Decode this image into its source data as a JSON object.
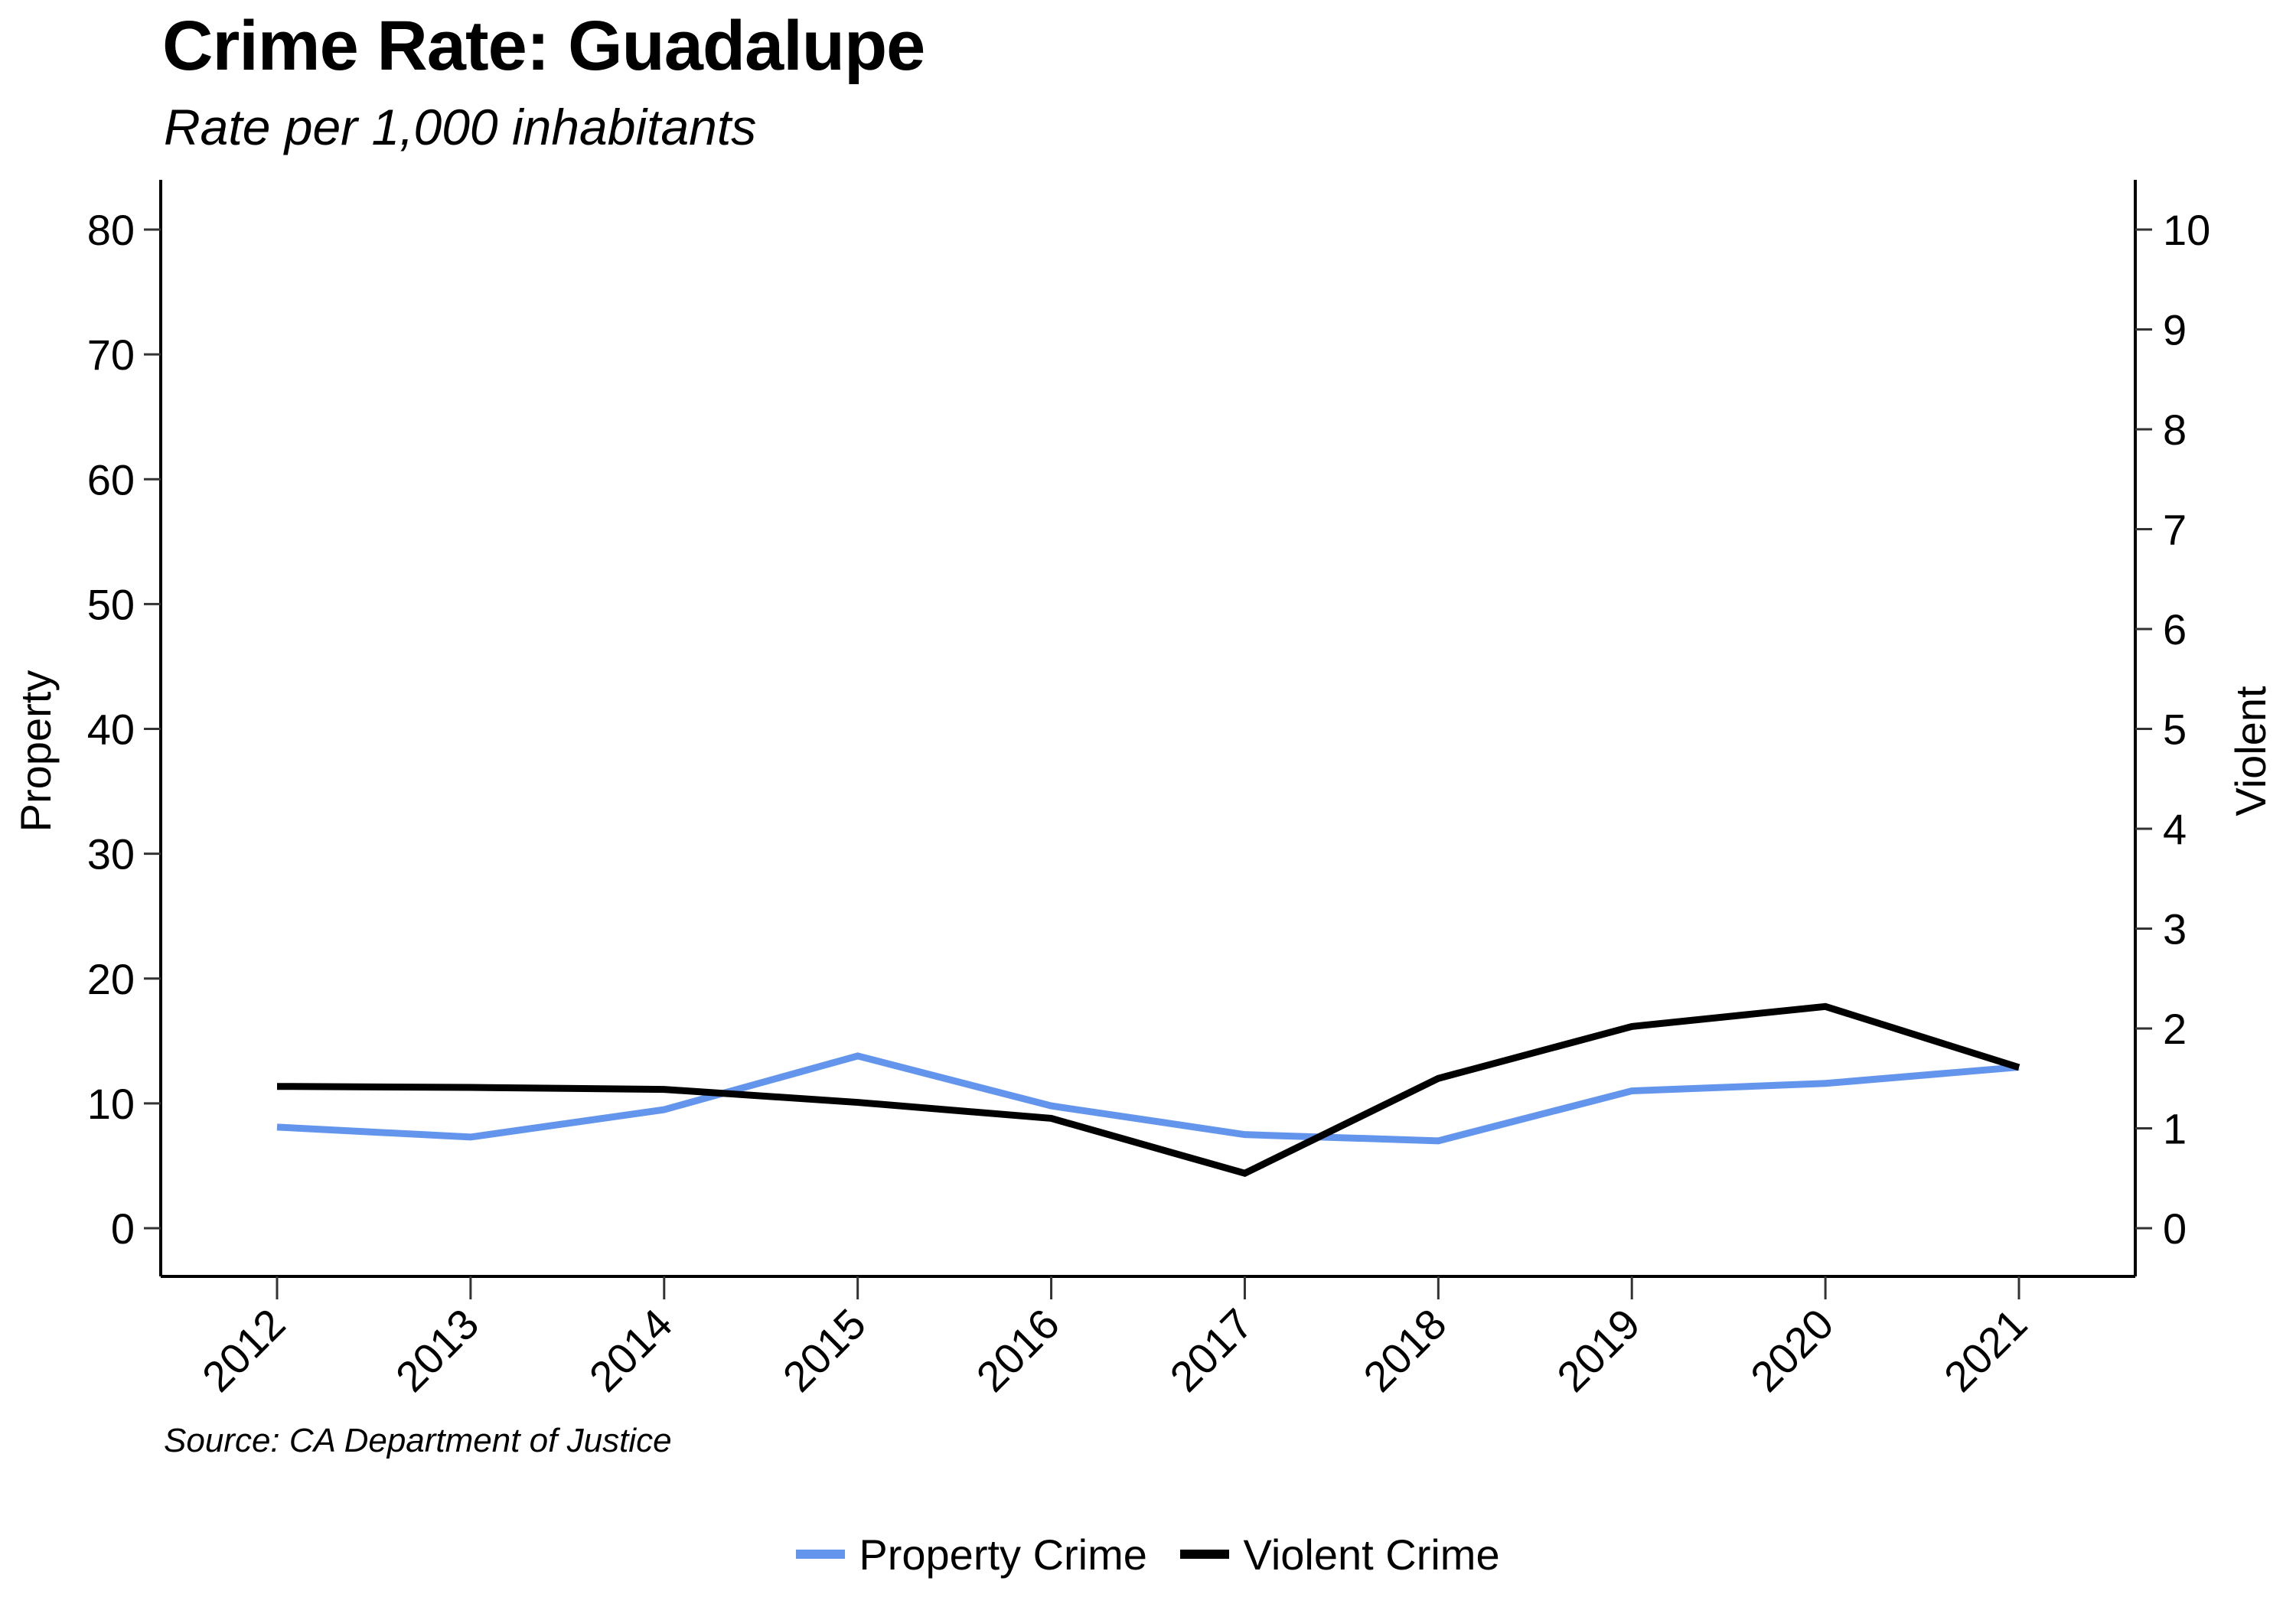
{
  "title": "Crime Rate: Guadalupe",
  "subtitle": "Rate per 1,000 inhabitants",
  "source": "Source: CA Department of Justice",
  "colors": {
    "property": "#6495ED",
    "violent": "#000000"
  },
  "chart_data": {
    "type": "line",
    "title": "Crime Rate: Guadalupe",
    "subtitle": "Rate per 1,000 inhabitants",
    "xlabel": "",
    "ylabel_left": "Property",
    "ylabel_right": "Violent",
    "categories": [
      "2012",
      "2013",
      "2014",
      "2015",
      "2016",
      "2017",
      "2018",
      "2019",
      "2020",
      "2021"
    ],
    "y_left": {
      "range": [
        -3.8,
        84
      ],
      "ticks": [
        0,
        10,
        20,
        30,
        40,
        50,
        60,
        70,
        80
      ]
    },
    "y_right": {
      "range": [
        -0.475,
        10.5
      ],
      "ticks": [
        0,
        1,
        2,
        3,
        4,
        5,
        6,
        7,
        8,
        9,
        10
      ]
    },
    "grid": false,
    "legend_position": "bottom",
    "series": [
      {
        "name": "Property Crime",
        "axis": "left",
        "color": "#6495ED",
        "values": [
          8.1,
          7.3,
          9.5,
          13.8,
          9.8,
          7.5,
          7.0,
          11.0,
          11.6,
          12.9
        ]
      },
      {
        "name": "Violent Crime",
        "axis": "right",
        "color": "#000000",
        "values": [
          1.42,
          1.41,
          1.39,
          1.26,
          1.1,
          0.55,
          1.5,
          2.02,
          2.22,
          1.61
        ]
      }
    ]
  }
}
